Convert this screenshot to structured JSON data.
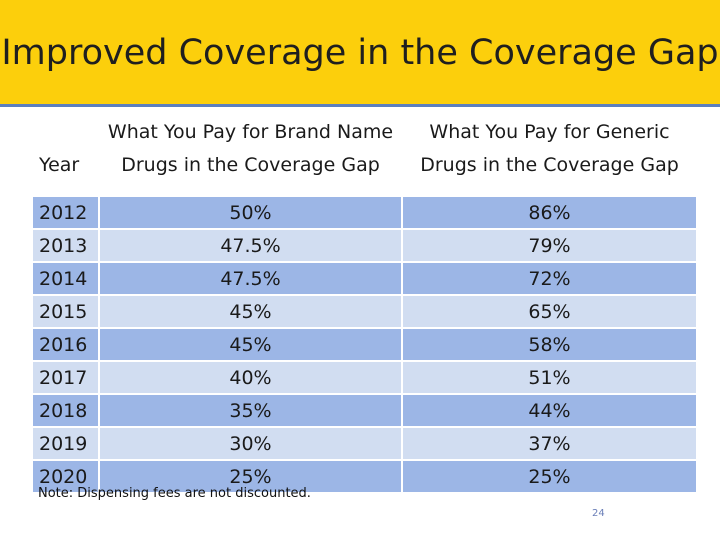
{
  "title": "Improved Coverage in the Coverage Gap",
  "table": {
    "headers": {
      "year": "Year",
      "brand_line1": "What You Pay for Brand Name",
      "brand_line2": "Drugs in the Coverage Gap",
      "generic_line1": "What You Pay for Generic",
      "generic_line2": "Drugs in the Coverage Gap"
    },
    "rows": [
      {
        "year": "2012",
        "brand": "50%",
        "generic": "86%"
      },
      {
        "year": "2013",
        "brand": "47.5%",
        "generic": "79%"
      },
      {
        "year": "2014",
        "brand": "47.5%",
        "generic": "72%"
      },
      {
        "year": "2015",
        "brand": "45%",
        "generic": "65%"
      },
      {
        "year": "2016",
        "brand": "45%",
        "generic": "58%"
      },
      {
        "year": "2017",
        "brand": "40%",
        "generic": "51%"
      },
      {
        "year": "2018",
        "brand": "35%",
        "generic": "44%"
      },
      {
        "year": "2019",
        "brand": "30%",
        "generic": "37%"
      },
      {
        "year": "2020",
        "brand": "25%",
        "generic": "25%"
      }
    ]
  },
  "note": "Note: Dispensing fees are not discounted.",
  "page_number": "24",
  "colors": {
    "title_bar": "#fccf0c",
    "row_dark": "#9cb6e6",
    "row_light": "#d1ddf1"
  }
}
